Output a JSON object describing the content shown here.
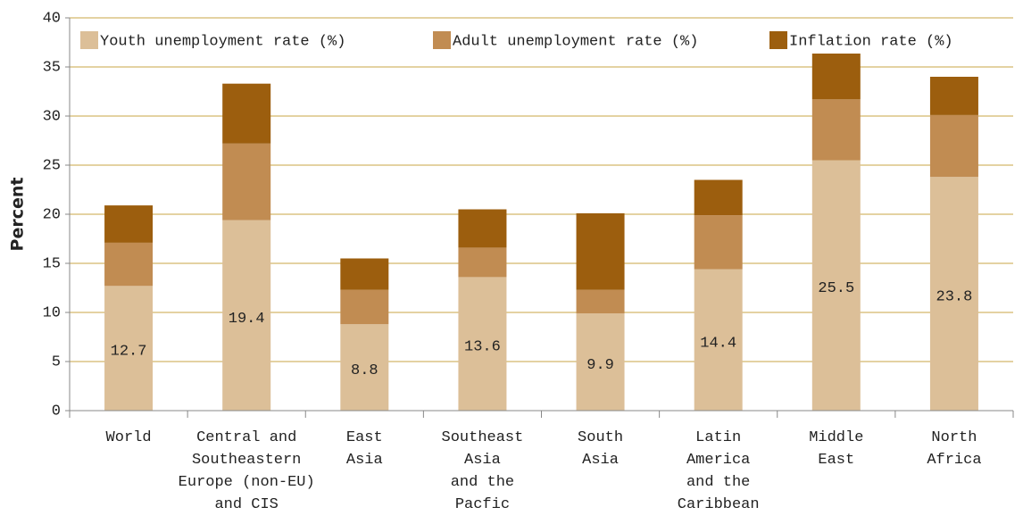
{
  "chart_data": {
    "type": "stacked_bar",
    "ylabel": "Percent",
    "categories": [
      [
        "World"
      ],
      [
        "Central and",
        "Southeastern",
        "Europe (non-EU)",
        "and CIS"
      ],
      [
        "East",
        "Asia"
      ],
      [
        "Southeast",
        "Asia",
        "and the",
        "Pacfic"
      ],
      [
        "South",
        "Asia"
      ],
      [
        "Latin",
        "America",
        "and the",
        "Caribbean"
      ],
      [
        "Middle",
        "East"
      ],
      [
        "North",
        "Africa"
      ]
    ],
    "series": [
      {
        "name": "Youth unemployment rate (%)",
        "color": "#dcbf98",
        "show_labels": true,
        "values": [
          12.7,
          19.4,
          8.8,
          13.6,
          9.9,
          14.4,
          25.5,
          23.8
        ]
      },
      {
        "name": "Adult unemployment rate (%)",
        "color": "#c18c52",
        "values": [
          4.4,
          7.8,
          3.5,
          3.0,
          2.4,
          5.5,
          6.2,
          6.3
        ]
      },
      {
        "name": "Inflation rate (%)",
        "color": "#9c5e0e",
        "values": [
          3.8,
          6.1,
          3.2,
          3.9,
          7.8,
          3.6,
          4.8,
          3.9
        ]
      }
    ],
    "ylim": [
      0,
      40
    ],
    "yticks": [
      0,
      5,
      10,
      15,
      20,
      25,
      30,
      35,
      40
    ],
    "grid": true,
    "legend": "top"
  }
}
